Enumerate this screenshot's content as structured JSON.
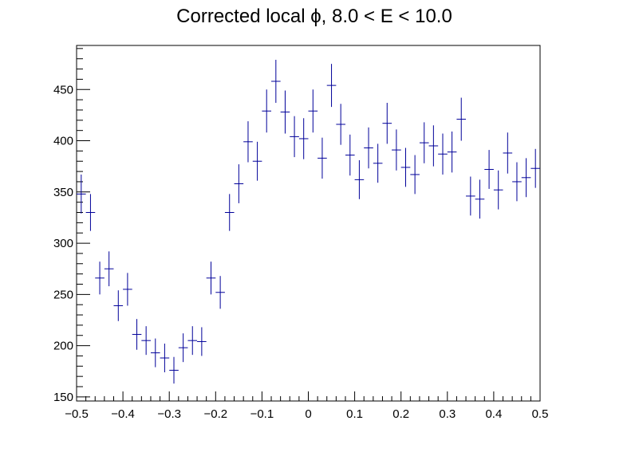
{
  "chart_data": {
    "type": "scatter",
    "title": "Corrected local ϕ, 8.0 < E < 10.0",
    "xlabel": "",
    "ylabel": "",
    "xlim": [
      -0.5,
      0.5
    ],
    "ylim": [
      146,
      493
    ],
    "x_ticks": [
      -0.5,
      -0.4,
      -0.3,
      -0.2,
      -0.1,
      0,
      0.1,
      0.2,
      0.3,
      0.4,
      0.5
    ],
    "x_tick_labels": [
      "−0.5",
      "−0.4",
      "−0.3",
      "−0.2",
      "−0.1",
      "0",
      "0.1",
      "0.2",
      "0.3",
      "0.4",
      "0.5"
    ],
    "y_ticks": [
      150,
      200,
      250,
      300,
      350,
      400,
      450
    ],
    "y_tick_labels": [
      "150",
      "200",
      "250",
      "300",
      "350",
      "400",
      "450"
    ],
    "bin_width": 0.02,
    "x": [
      -0.49,
      -0.47,
      -0.45,
      -0.43,
      -0.41,
      -0.39,
      -0.37,
      -0.35,
      -0.33,
      -0.31,
      -0.29,
      -0.27,
      -0.25,
      -0.23,
      -0.21,
      -0.19,
      -0.17,
      -0.15,
      -0.13,
      -0.11,
      -0.09,
      -0.07,
      -0.05,
      -0.03,
      -0.01,
      0.01,
      0.03,
      0.05,
      0.07,
      0.09,
      0.11,
      0.13,
      0.15,
      0.17,
      0.19,
      0.21,
      0.23,
      0.25,
      0.27,
      0.29,
      0.31,
      0.33,
      0.35,
      0.37,
      0.39,
      0.41,
      0.43,
      0.45,
      0.47,
      0.49
    ],
    "values": [
      348,
      330,
      266,
      275,
      239,
      255,
      211,
      205,
      193,
      188,
      176,
      198,
      205,
      204,
      266,
      252,
      330,
      358,
      399,
      380,
      429,
      458,
      428,
      404,
      402,
      429,
      383,
      454,
      416,
      386,
      362,
      393,
      378,
      417,
      391,
      374,
      367,
      398,
      395,
      387,
      389,
      421,
      346,
      343,
      372,
      352,
      388,
      360,
      364,
      373
    ],
    "errors": [
      19,
      18,
      16,
      17,
      15,
      16,
      15,
      14,
      14,
      14,
      13,
      14,
      14,
      14,
      16,
      16,
      18,
      19,
      20,
      19,
      21,
      21,
      21,
      20,
      20,
      21,
      20,
      21,
      20,
      20,
      19,
      20,
      19,
      20,
      20,
      19,
      19,
      20,
      20,
      20,
      20,
      21,
      19,
      19,
      19,
      19,
      20,
      19,
      19,
      19
    ],
    "series_color": "#000099",
    "grid": false,
    "legend": "none"
  }
}
